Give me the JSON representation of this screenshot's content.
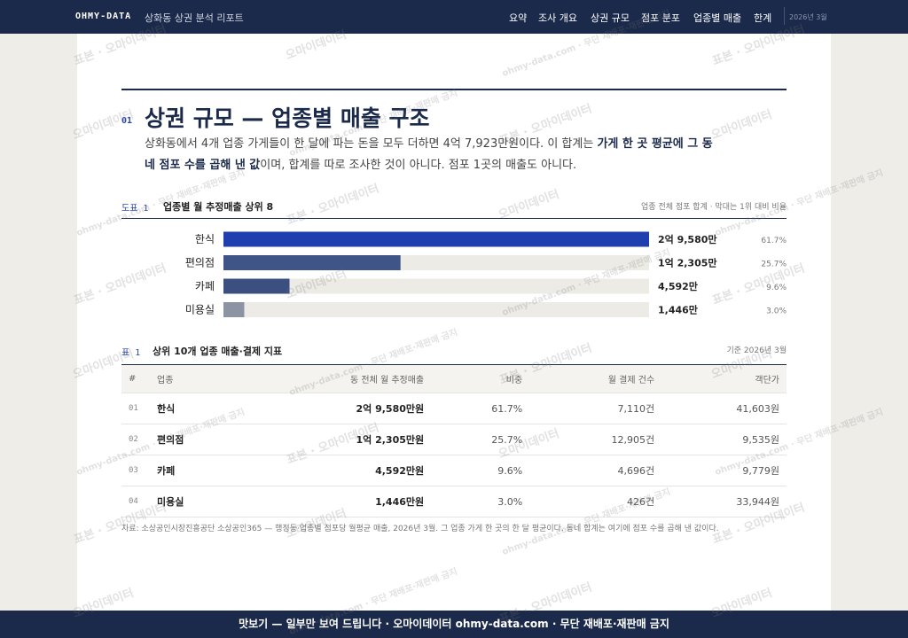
{
  "header": {
    "brand": "OHMY-DATA",
    "title": "상화동 상권 분석 리포트",
    "nav": [
      "요약",
      "조사 개요",
      "상권 규모",
      "점포 분포",
      "업종별 매출",
      "한계"
    ],
    "date": "2026년 3월"
  },
  "section": {
    "number": "01",
    "title": "상권 규모 — 업종별 매출 구조",
    "lead": [
      "상화동에서 4개 업종 가게들이 한 달에 파는 돈을 모두 더하면 4억 7,923만원이다. 이 합계는 ",
      "가게 한 곳 평균에 그 동네 점포 수를 곱해 낸 값",
      "이며, 합계를 따로 조사한 것이 아니다. 점포 1곳의 매출도 아니다."
    ]
  },
  "chart_data": {
    "type": "hbar",
    "label": "도표 1",
    "title": "업종별 월 추정매출 상위 8",
    "note": "업종 전체 점포 합계 · 막대는 1위 대비 비율",
    "categories": [
      "한식",
      "편의점",
      "카페",
      "미용실"
    ],
    "values": [
      29580,
      12305,
      4592,
      1446
    ],
    "value_labels": [
      "2억 9,580만",
      "1억 2,305만",
      "4,592만",
      "1,446만"
    ],
    "shares": [
      "61.7%",
      "25.7%",
      "9.6%",
      "3.0%"
    ],
    "colors": [
      "#1f3fae",
      "#3f5588",
      "#3b4f80",
      "#8c94a4"
    ],
    "track_color": "#ecebe5"
  },
  "table": {
    "label": "표 1",
    "title": "상위 10개 업종 매출·결제 지표",
    "note": "기준 2026년 3월",
    "columns": [
      "#",
      "업종",
      "동 전체 월 추정매출",
      "비중",
      "월 결제 건수",
      "객단가"
    ],
    "rows": [
      [
        "01",
        "한식",
        "2억 9,580만원",
        "61.7%",
        "7,110건",
        "41,603원"
      ],
      [
        "02",
        "편의점",
        "1억 2,305만원",
        "25.7%",
        "12,905건",
        "9,535원"
      ],
      [
        "03",
        "카페",
        "4,592만원",
        "9.6%",
        "4,696건",
        "9,779원"
      ],
      [
        "04",
        "미용실",
        "1,446만원",
        "3.0%",
        "426건",
        "33,944원"
      ]
    ]
  },
  "source": "자료: 소상공인시장진흥공단 소상공인365 — 행정동·업종별 점포당 월평균 매출, 2026년 3월. 그 업종 가게 한 곳의 한 달 평균이다. 동네 합계는 여기에 점포 수를 곱해 낸 값이다.",
  "footer": "맛보기 — 일부만 보여 드립니다 · 오마이데이터 ohmy-data.com · 무단 재배포·재판매 금지",
  "watermark": [
    "표본 · 오마이데이터",
    "오마이데이터",
    "ohmy-data.com · 무단 재배포·재판매 금지"
  ]
}
